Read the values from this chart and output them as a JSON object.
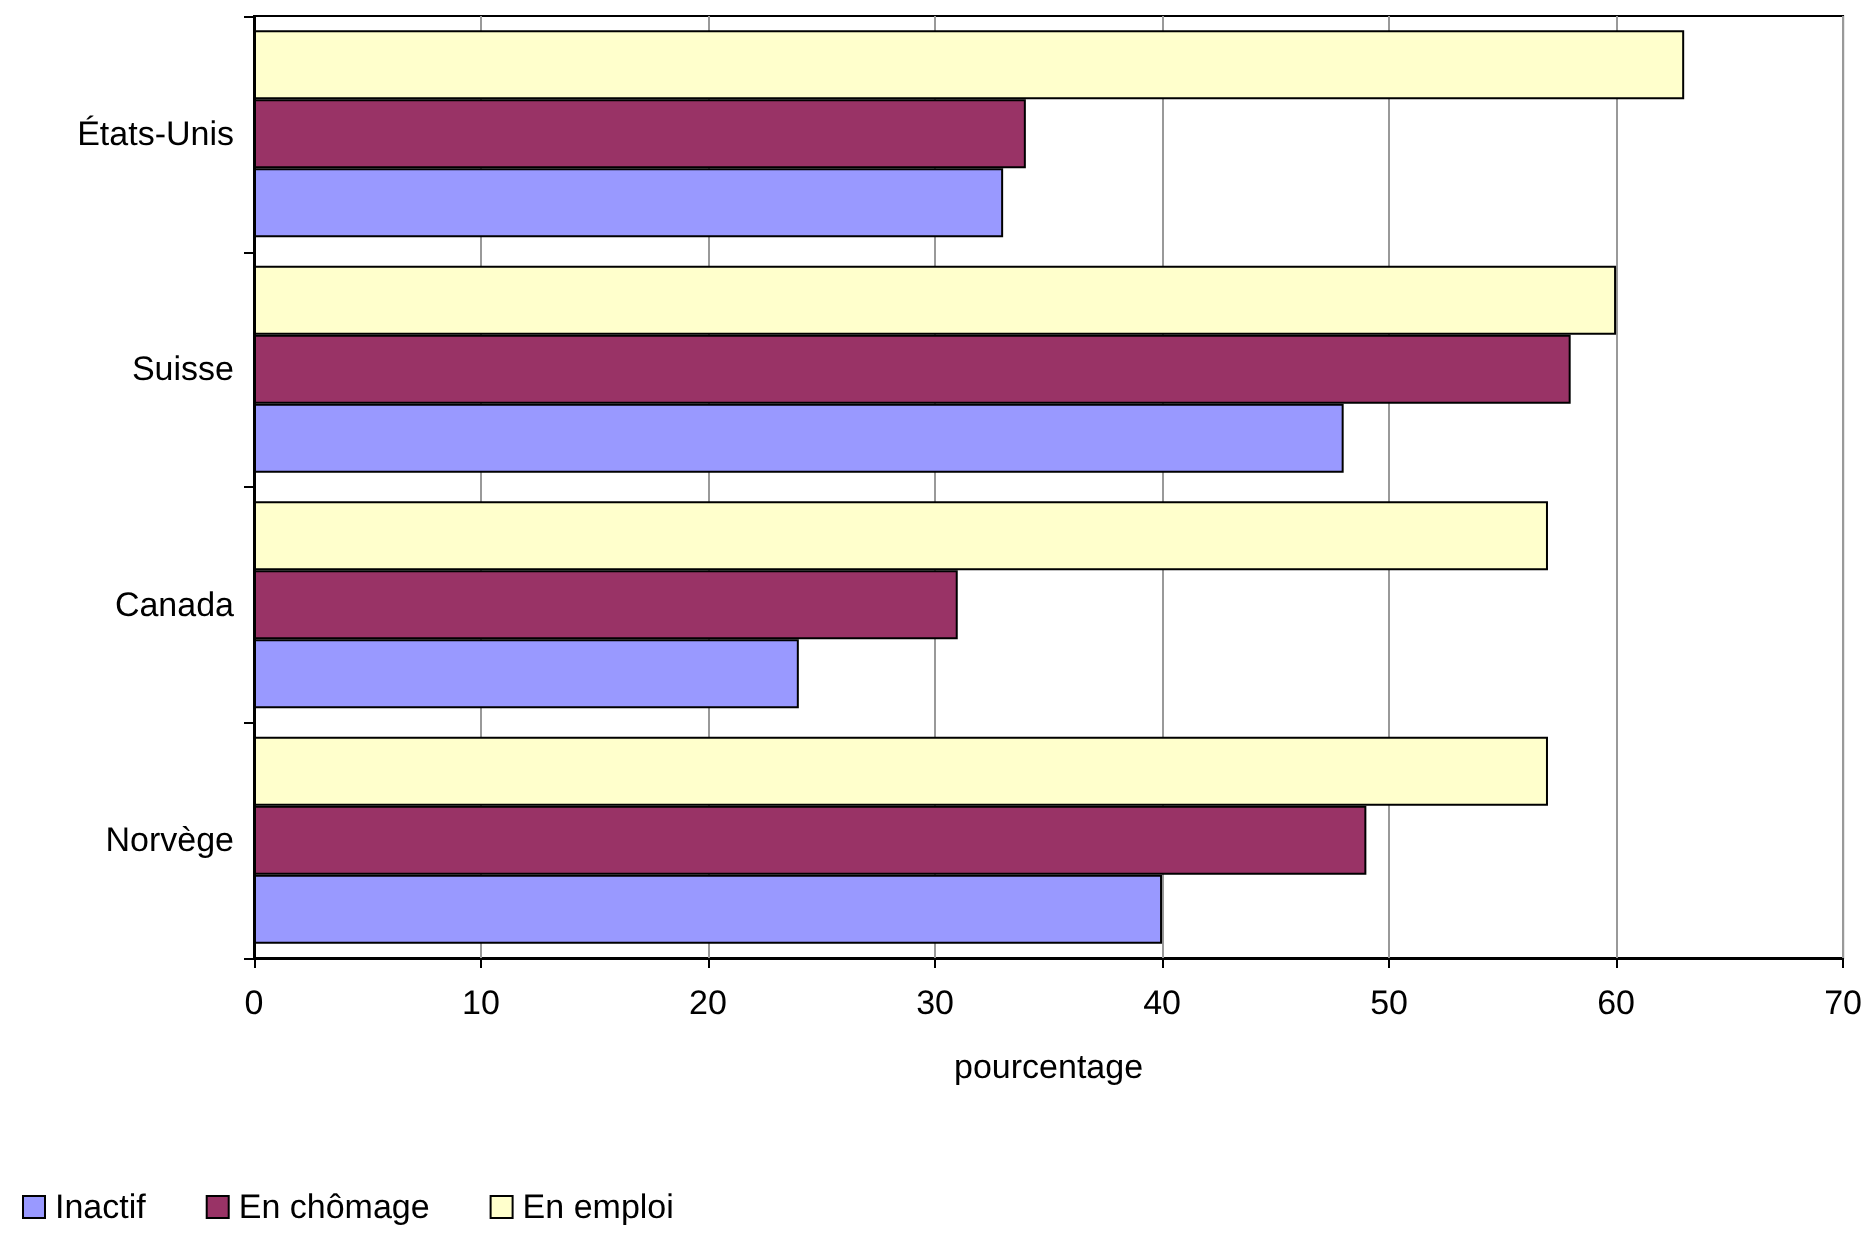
{
  "chart_data": {
    "type": "bar",
    "orientation": "horizontal",
    "categories": [
      "États-Unis",
      "Suisse",
      "Canada",
      "Norvège"
    ],
    "series": [
      {
        "name": "Inactif",
        "color": "#9999ff",
        "values": [
          33,
          48,
          24,
          40
        ]
      },
      {
        "name": "En chômage",
        "color": "#993366",
        "values": [
          34,
          58,
          31,
          49
        ]
      },
      {
        "name": "En emploi",
        "color": "#ffffcc",
        "values": [
          63,
          60,
          57,
          57
        ]
      }
    ],
    "xlabel": "pourcentage",
    "xlim": [
      0,
      70
    ],
    "xticks": [
      0,
      10,
      20,
      30,
      40,
      50,
      60,
      70
    ],
    "grid": "x",
    "legend": "bottom left"
  }
}
